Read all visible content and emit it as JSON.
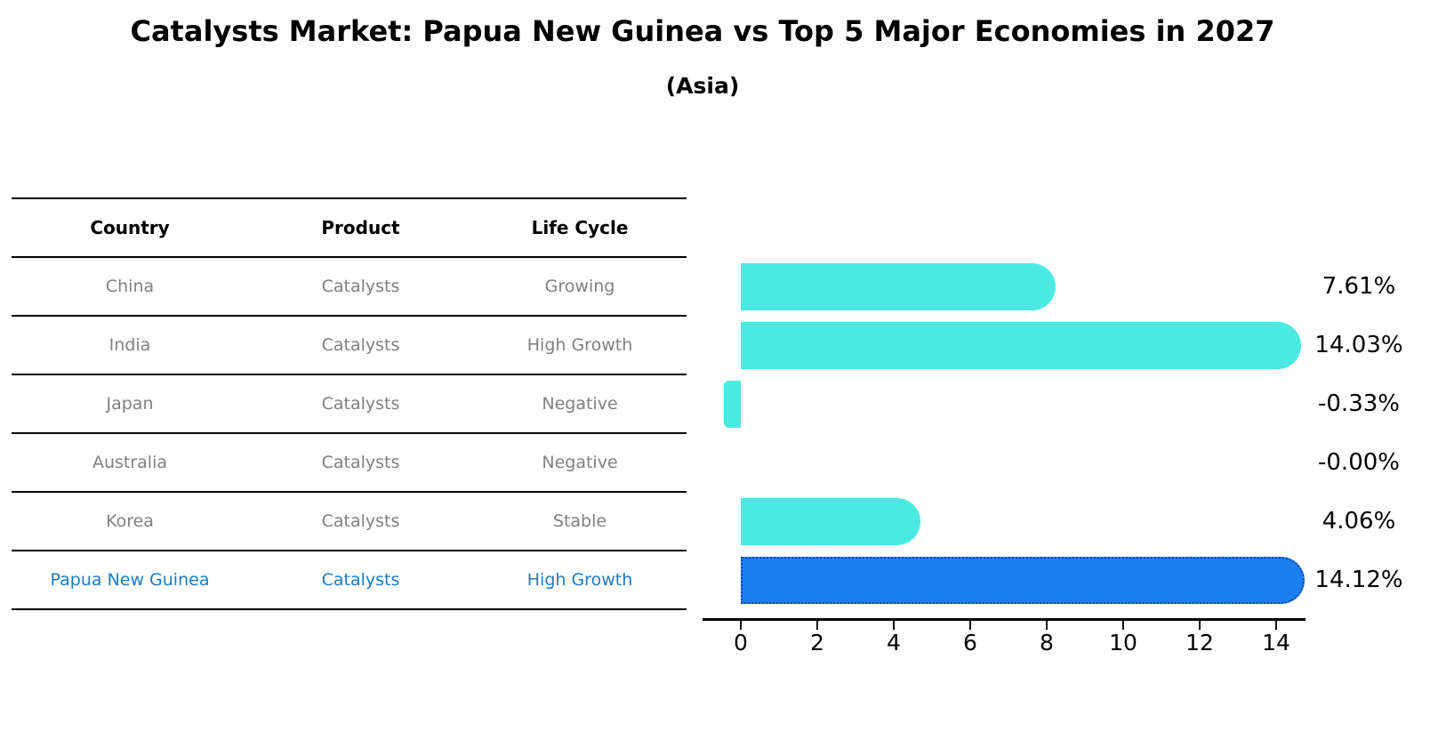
{
  "header": {
    "title": "Catalysts Market: Papua New Guinea vs Top 5 Major Economies in 2027",
    "subtitle": "(Asia)"
  },
  "table": {
    "headers": [
      "Country",
      "Product",
      "Life Cycle"
    ],
    "rows": [
      {
        "country": "China",
        "product": "Catalysts",
        "life_cycle": "Growing",
        "highlight": false
      },
      {
        "country": "India",
        "product": "Catalysts",
        "life_cycle": "High Growth",
        "highlight": false
      },
      {
        "country": "Japan",
        "product": "Catalysts",
        "life_cycle": "Negative",
        "highlight": false
      },
      {
        "country": "Australia",
        "product": "Catalysts",
        "life_cycle": "Negative",
        "highlight": false
      },
      {
        "country": "Korea",
        "product": "Catalysts",
        "life_cycle": "Stable",
        "highlight": false
      },
      {
        "country": "Papua New Guinea",
        "product": "Catalysts",
        "life_cycle": "High Growth",
        "highlight": true
      }
    ]
  },
  "chart_data": {
    "type": "bar",
    "orientation": "horizontal",
    "title": "Catalysts Market: Papua New Guinea vs Top 5 Major Economies in 2027",
    "subtitle": "(Asia)",
    "categories": [
      "China",
      "India",
      "Japan",
      "Australia",
      "Korea",
      "Papua New Guinea"
    ],
    "values": [
      7.61,
      14.03,
      -0.33,
      -0.0,
      4.06,
      14.12
    ],
    "value_labels": [
      "7.61%",
      "14.03%",
      "-0.33%",
      "-0.00%",
      "4.06%",
      "14.12%"
    ],
    "x_ticks": [
      0,
      2,
      4,
      6,
      8,
      10,
      12,
      14
    ],
    "xlim": [
      -1,
      14.8
    ],
    "grid": false,
    "legend": null,
    "highlight_index": 5,
    "colors": {
      "bar": "#4BE9E1",
      "highlight_bar": "#1B80ED",
      "highlight_border": "#1547A8",
      "label_text": "#000000",
      "table_text": "#808080",
      "highlight_text": "#1E7AC2",
      "axis": "#000000"
    }
  }
}
